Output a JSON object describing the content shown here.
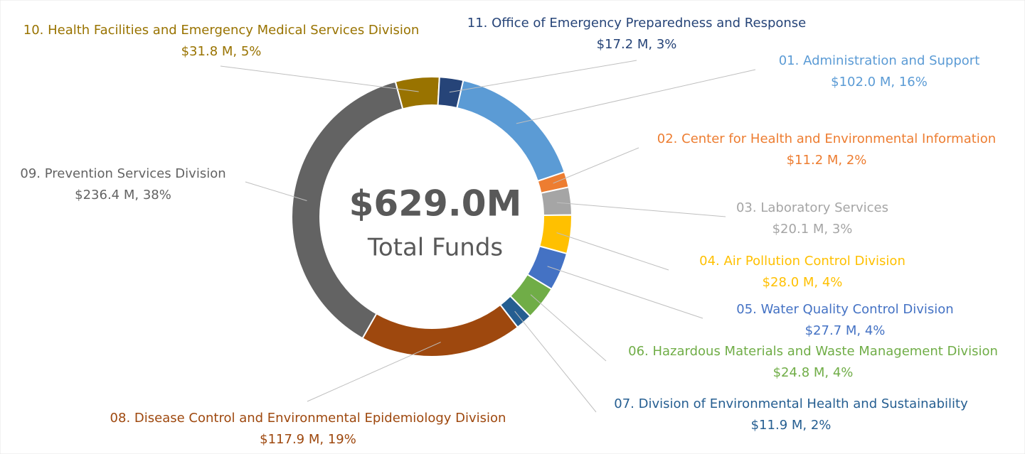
{
  "chart_data": {
    "type": "pie",
    "donut": true,
    "center_value": "$629.0M",
    "center_label": "Total Funds",
    "categories": [
      "01. Administration and Support",
      "02. Center for Health and Environmental Information",
      "03. Laboratory Services",
      "04. Air Pollution Control Division",
      "05. Water Quality Control Division",
      "06. Hazardous Materials and Waste Management Division",
      "07. Division of Environmental Health and Sustainability",
      "08. Disease Control and Environmental Epidemiology Division",
      "09. Prevention Services Division",
      "10. Health Facilities and Emergency Medical Services Division",
      "11. Office of Emergency Preparedness and Response"
    ],
    "values": [
      102.0,
      11.2,
      20.1,
      28.0,
      27.7,
      24.8,
      11.9,
      117.9,
      236.4,
      31.8,
      17.2
    ],
    "value_labels": [
      "$102.0 M, 16%",
      "$11.2 M, 2%",
      "$20.1 M, 3%",
      "$28.0 M, 4%",
      "$27.7 M, 4%",
      "$24.8 M, 4%",
      "$11.9 M, 2%",
      "$117.9 M, 19%",
      "$236.4 M, 38%",
      "$31.8 M, 5%",
      "$17.2 M, 3%"
    ],
    "colors": [
      "#5b9bd5",
      "#ed7d31",
      "#a5a5a5",
      "#ffc000",
      "#4472c4",
      "#70ad47",
      "#255e91",
      "#9e480e",
      "#636363",
      "#997300",
      "#264478"
    ]
  }
}
